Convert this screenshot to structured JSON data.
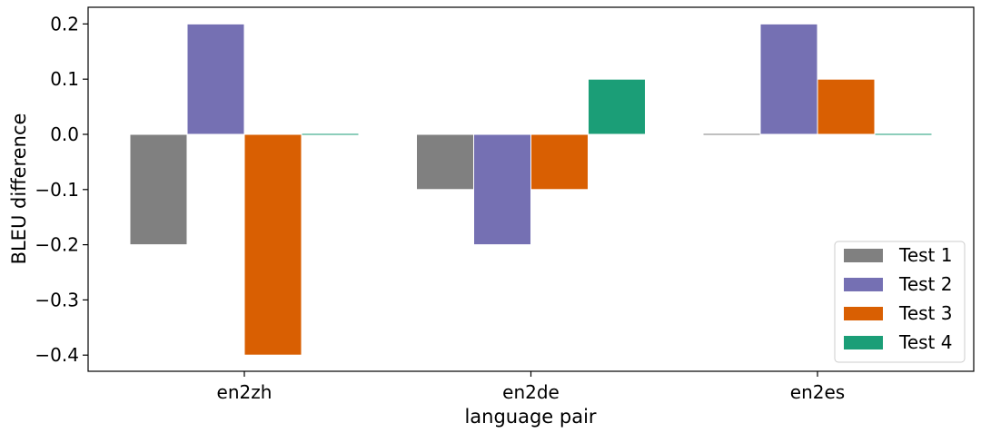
{
  "chart_data": {
    "type": "bar",
    "title": "",
    "xlabel": "language pair",
    "ylabel": "BLEU difference",
    "categories": [
      "en2zh",
      "en2de",
      "en2es"
    ],
    "ylim": [
      -0.42,
      0.23
    ],
    "yticks": [
      -0.4,
      -0.3,
      -0.2,
      -0.1,
      0.0,
      0.1,
      0.2
    ],
    "ytick_labels": [
      "−0.4",
      "−0.3",
      "−0.2",
      "−0.1",
      "0.0",
      "0.1",
      "0.2"
    ],
    "grid": false,
    "legend_position": "bottom-right",
    "series": [
      {
        "name": "Test 1",
        "color": "#808080",
        "values": [
          -0.2,
          -0.1,
          0.0
        ]
      },
      {
        "name": "Test 2",
        "color": "#7570b3",
        "values": [
          0.2,
          -0.2,
          0.2
        ]
      },
      {
        "name": "Test 3",
        "color": "#d95f02",
        "values": [
          -0.4,
          -0.1,
          0.1
        ]
      },
      {
        "name": "Test 4",
        "color": "#1b9e77",
        "values": [
          0.0,
          0.1,
          0.0
        ]
      }
    ]
  }
}
